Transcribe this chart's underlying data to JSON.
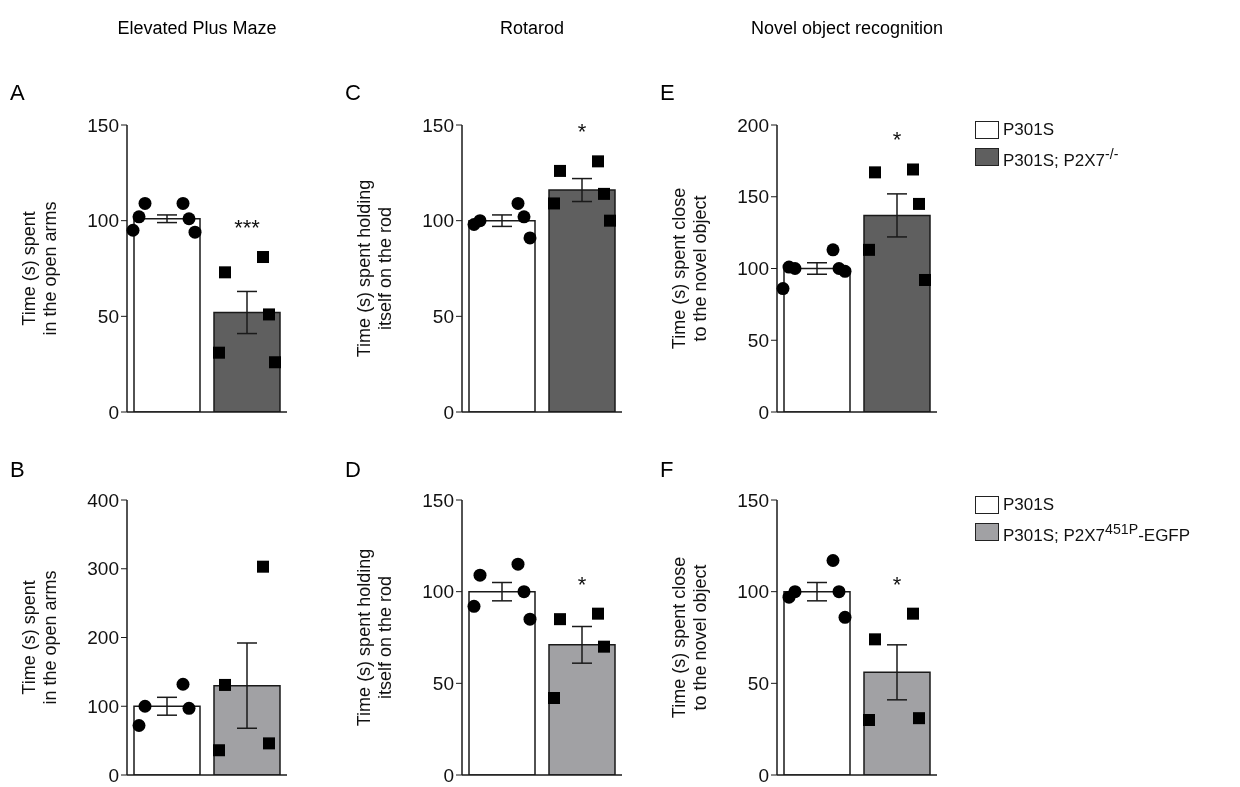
{
  "chart_data": [
    {
      "type": "bar",
      "title": "Elevated Plus Maze",
      "subtitle": "A",
      "ylabel": "Time (s) spent in the open arms",
      "categories": [
        null,
        null
      ],
      "ylim": [
        0,
        150
      ],
      "yticks": [
        0,
        50,
        100,
        150
      ],
      "tick_labels": "y",
      "legend": false,
      "annotations": [
        "***"
      ],
      "series": [
        {
          "type": "bar",
          "color": "#ffffff",
          "values": [
            101,
            null
          ],
          "errors": [
            2,
            null
          ]
        },
        {
          "type": "bar",
          "color": "#5f5f5f",
          "values": [
            null,
            52
          ],
          "errors": [
            null,
            11
          ]
        },
        {
          "type": "scatter",
          "marker": "circle",
          "color": "#000000",
          "values": [
            109,
            null
          ]
        },
        {
          "type": "scatter",
          "marker": "circle",
          "color": "#000000",
          "values": [
            109,
            null
          ]
        },
        {
          "type": "scatter",
          "marker": "circle",
          "color": "#000000",
          "values": [
            101,
            null
          ]
        },
        {
          "type": "scatter",
          "marker": "circle",
          "color": "#000000",
          "values": [
            102,
            null
          ]
        },
        {
          "type": "scatter",
          "marker": "circle",
          "color": "#000000",
          "values": [
            94,
            null
          ]
        },
        {
          "type": "scatter",
          "marker": "circle",
          "color": "#000000",
          "values": [
            95,
            null
          ]
        },
        {
          "type": "scatter",
          "marker": "square",
          "color": "#000000",
          "values": [
            null,
            81
          ]
        },
        {
          "type": "scatter",
          "marker": "square",
          "color": "#000000",
          "values": [
            null,
            73
          ]
        },
        {
          "type": "scatter",
          "marker": "square",
          "color": "#000000",
          "values": [
            null,
            51
          ]
        },
        {
          "type": "scatter",
          "marker": "square",
          "color": "#000000",
          "values": [
            null,
            31
          ]
        },
        {
          "type": "scatter",
          "marker": "square",
          "color": "#000000",
          "values": [
            null,
            26
          ]
        }
      ]
    },
    {
      "type": "bar",
      "title": "Rotarod",
      "subtitle": "C",
      "ylabel": "Time (s) spent holding itself on the rod",
      "categories": [
        null,
        null
      ],
      "ylim": [
        0,
        150
      ],
      "yticks": [
        0,
        50,
        100,
        150
      ],
      "tick_labels": "y",
      "legend": false,
      "annotations": [
        "*"
      ],
      "series": [
        {
          "type": "bar",
          "color": "#ffffff",
          "values": [
            100,
            null
          ],
          "errors": [
            3,
            null
          ]
        },
        {
          "type": "bar",
          "color": "#5f5f5f",
          "values": [
            null,
            116
          ],
          "errors": [
            null,
            6
          ]
        },
        {
          "type": "scatter",
          "marker": "circle",
          "color": "#000000",
          "values": [
            109,
            null
          ]
        },
        {
          "type": "scatter",
          "marker": "circle",
          "color": "#000000",
          "values": [
            100,
            null
          ]
        },
        {
          "type": "scatter",
          "marker": "circle",
          "color": "#000000",
          "values": [
            102,
            null
          ]
        },
        {
          "type": "scatter",
          "marker": "circle",
          "color": "#000000",
          "values": [
            98,
            null
          ]
        },
        {
          "type": "scatter",
          "marker": "circle",
          "color": "#000000",
          "values": [
            91,
            null
          ]
        },
        {
          "type": "scatter",
          "marker": "square",
          "color": "#000000",
          "values": [
            null,
            131
          ]
        },
        {
          "type": "scatter",
          "marker": "square",
          "color": "#000000",
          "values": [
            null,
            126
          ]
        },
        {
          "type": "scatter",
          "marker": "square",
          "color": "#000000",
          "values": [
            null,
            114
          ]
        },
        {
          "type": "scatter",
          "marker": "square",
          "color": "#000000",
          "values": [
            null,
            109
          ]
        },
        {
          "type": "scatter",
          "marker": "square",
          "color": "#000000",
          "values": [
            null,
            100
          ]
        }
      ]
    },
    {
      "type": "bar",
      "title": "Novel object recognition",
      "subtitle": "E",
      "ylabel": "Time (s) spent close to the novel object",
      "categories": [
        null,
        null
      ],
      "ylim": [
        0,
        200
      ],
      "yticks": [
        0,
        50,
        100,
        150,
        200
      ],
      "tick_labels": "y",
      "legend": "right",
      "annotations": [
        "*"
      ],
      "series": [
        {
          "type": "bar",
          "name": "P301S",
          "color": "#ffffff",
          "values": [
            100,
            null
          ],
          "errors": [
            4,
            null
          ]
        },
        {
          "type": "bar",
          "name": "P301S; P2X7$^{-/-}$",
          "color": "#5f5f5f",
          "values": [
            null,
            137
          ],
          "errors": [
            null,
            15
          ]
        },
        {
          "type": "scatter",
          "marker": "circle",
          "color": "#000000",
          "values": [
            113,
            null
          ]
        },
        {
          "type": "scatter",
          "marker": "circle",
          "color": "#000000",
          "values": [
            100,
            null
          ]
        },
        {
          "type": "scatter",
          "marker": "circle",
          "color": "#000000",
          "values": [
            100,
            null
          ]
        },
        {
          "type": "scatter",
          "marker": "circle",
          "color": "#000000",
          "values": [
            101,
            null
          ]
        },
        {
          "type": "scatter",
          "marker": "circle",
          "color": "#000000",
          "values": [
            98,
            null
          ]
        },
        {
          "type": "scatter",
          "marker": "circle",
          "color": "#000000",
          "values": [
            86,
            null
          ]
        },
        {
          "type": "scatter",
          "marker": "square",
          "color": "#000000",
          "values": [
            null,
            169
          ]
        },
        {
          "type": "scatter",
          "marker": "square",
          "color": "#000000",
          "values": [
            null,
            167
          ]
        },
        {
          "type": "scatter",
          "marker": "square",
          "color": "#000000",
          "values": [
            null,
            145
          ]
        },
        {
          "type": "scatter",
          "marker": "square",
          "color": "#000000",
          "values": [
            null,
            113
          ]
        },
        {
          "type": "scatter",
          "marker": "square",
          "color": "#000000",
          "values": [
            null,
            92
          ]
        }
      ]
    },
    {
      "type": "bar",
      "title": "B",
      "ylabel": "Time (s) spent in the open arms",
      "categories": [
        null,
        null
      ],
      "ylim": [
        0,
        400
      ],
      "yticks": [
        0,
        100,
        200,
        300,
        400
      ],
      "tick_labels": "y",
      "legend": false,
      "series": [
        {
          "type": "bar",
          "color": "#ffffff",
          "values": [
            100,
            null
          ],
          "errors": [
            13,
            null
          ]
        },
        {
          "type": "bar",
          "color": "#a1a1a4",
          "values": [
            null,
            130
          ],
          "errors": [
            null,
            62
          ]
        },
        {
          "type": "scatter",
          "marker": "circle",
          "color": "#000000",
          "values": [
            132,
            null
          ]
        },
        {
          "type": "scatter",
          "marker": "circle",
          "color": "#000000",
          "values": [
            100,
            null
          ]
        },
        {
          "type": "scatter",
          "marker": "circle",
          "color": "#000000",
          "values": [
            97,
            null
          ]
        },
        {
          "type": "scatter",
          "marker": "circle",
          "color": "#000000",
          "values": [
            72,
            null
          ]
        },
        {
          "type": "scatter",
          "marker": "square",
          "color": "#000000",
          "values": [
            null,
            303
          ]
        },
        {
          "type": "scatter",
          "marker": "square",
          "color": "#000000",
          "values": [
            null,
            131
          ]
        },
        {
          "type": "scatter",
          "marker": "square",
          "color": "#000000",
          "values": [
            null,
            46
          ]
        },
        {
          "type": "scatter",
          "marker": "square",
          "color": "#000000",
          "values": [
            null,
            36
          ]
        }
      ]
    },
    {
      "type": "bar",
      "title": "D",
      "ylabel": "Time (s) spent holding itself on the rod",
      "categories": [
        null,
        null
      ],
      "ylim": [
        0,
        150
      ],
      "yticks": [
        0,
        50,
        100,
        150
      ],
      "tick_labels": "y",
      "legend": false,
      "annotations": [
        "*"
      ],
      "series": [
        {
          "type": "bar",
          "color": "#ffffff",
          "values": [
            100,
            null
          ],
          "errors": [
            5,
            null
          ]
        },
        {
          "type": "bar",
          "color": "#a1a1a4",
          "values": [
            null,
            71
          ],
          "errors": [
            null,
            10
          ]
        },
        {
          "type": "scatter",
          "marker": "circle",
          "color": "#000000",
          "values": [
            115,
            null
          ]
        },
        {
          "type": "scatter",
          "marker": "circle",
          "color": "#000000",
          "values": [
            109,
            null
          ]
        },
        {
          "type": "scatter",
          "marker": "circle",
          "color": "#000000",
          "values": [
            100,
            null
          ]
        },
        {
          "type": "scatter",
          "marker": "circle",
          "color": "#000000",
          "values": [
            92,
            null
          ]
        },
        {
          "type": "scatter",
          "marker": "circle",
          "color": "#000000",
          "values": [
            85,
            null
          ]
        },
        {
          "type": "scatter",
          "marker": "square",
          "color": "#000000",
          "values": [
            null,
            88
          ]
        },
        {
          "type": "scatter",
          "marker": "square",
          "color": "#000000",
          "values": [
            null,
            85
          ]
        },
        {
          "type": "scatter",
          "marker": "square",
          "color": "#000000",
          "values": [
            null,
            70
          ]
        },
        {
          "type": "scatter",
          "marker": "square",
          "color": "#000000",
          "values": [
            null,
            42
          ]
        }
      ]
    },
    {
      "type": "bar",
      "title": "F",
      "ylabel": "Time (s) spent close to the novel object",
      "categories": [
        null,
        null
      ],
      "ylim": [
        0,
        150
      ],
      "yticks": [
        0,
        50,
        100,
        150
      ],
      "tick_labels": "y",
      "legend": "right",
      "annotations": [
        "*"
      ],
      "series": [
        {
          "type": "bar",
          "name": "P301S",
          "color": "#ffffff",
          "values": [
            100,
            null
          ],
          "errors": [
            5,
            null
          ]
        },
        {
          "type": "bar",
          "name": "P301S; P2X7$^{451P}$-EGFP",
          "color": "#a1a1a4",
          "values": [
            null,
            56
          ],
          "errors": [
            null,
            15
          ]
        },
        {
          "type": "scatter",
          "marker": "circle",
          "color": "#000000",
          "values": [
            117,
            null
          ]
        },
        {
          "type": "scatter",
          "marker": "circle",
          "color": "#000000",
          "values": [
            100,
            null
          ]
        },
        {
          "type": "scatter",
          "marker": "circle",
          "color": "#000000",
          "values": [
            100,
            null
          ]
        },
        {
          "type": "scatter",
          "marker": "circle",
          "color": "#000000",
          "values": [
            97,
            null
          ]
        },
        {
          "type": "scatter",
          "marker": "circle",
          "color": "#000000",
          "values": [
            86,
            null
          ]
        },
        {
          "type": "scatter",
          "marker": "square",
          "color": "#000000",
          "values": [
            null,
            88
          ]
        },
        {
          "type": "scatter",
          "marker": "square",
          "color": "#000000",
          "values": [
            null,
            74
          ]
        },
        {
          "type": "scatter",
          "marker": "square",
          "color": "#000000",
          "values": [
            null,
            31
          ]
        },
        {
          "type": "scatter",
          "marker": "square",
          "color": "#000000",
          "values": [
            null,
            30
          ]
        }
      ]
    }
  ]
}
